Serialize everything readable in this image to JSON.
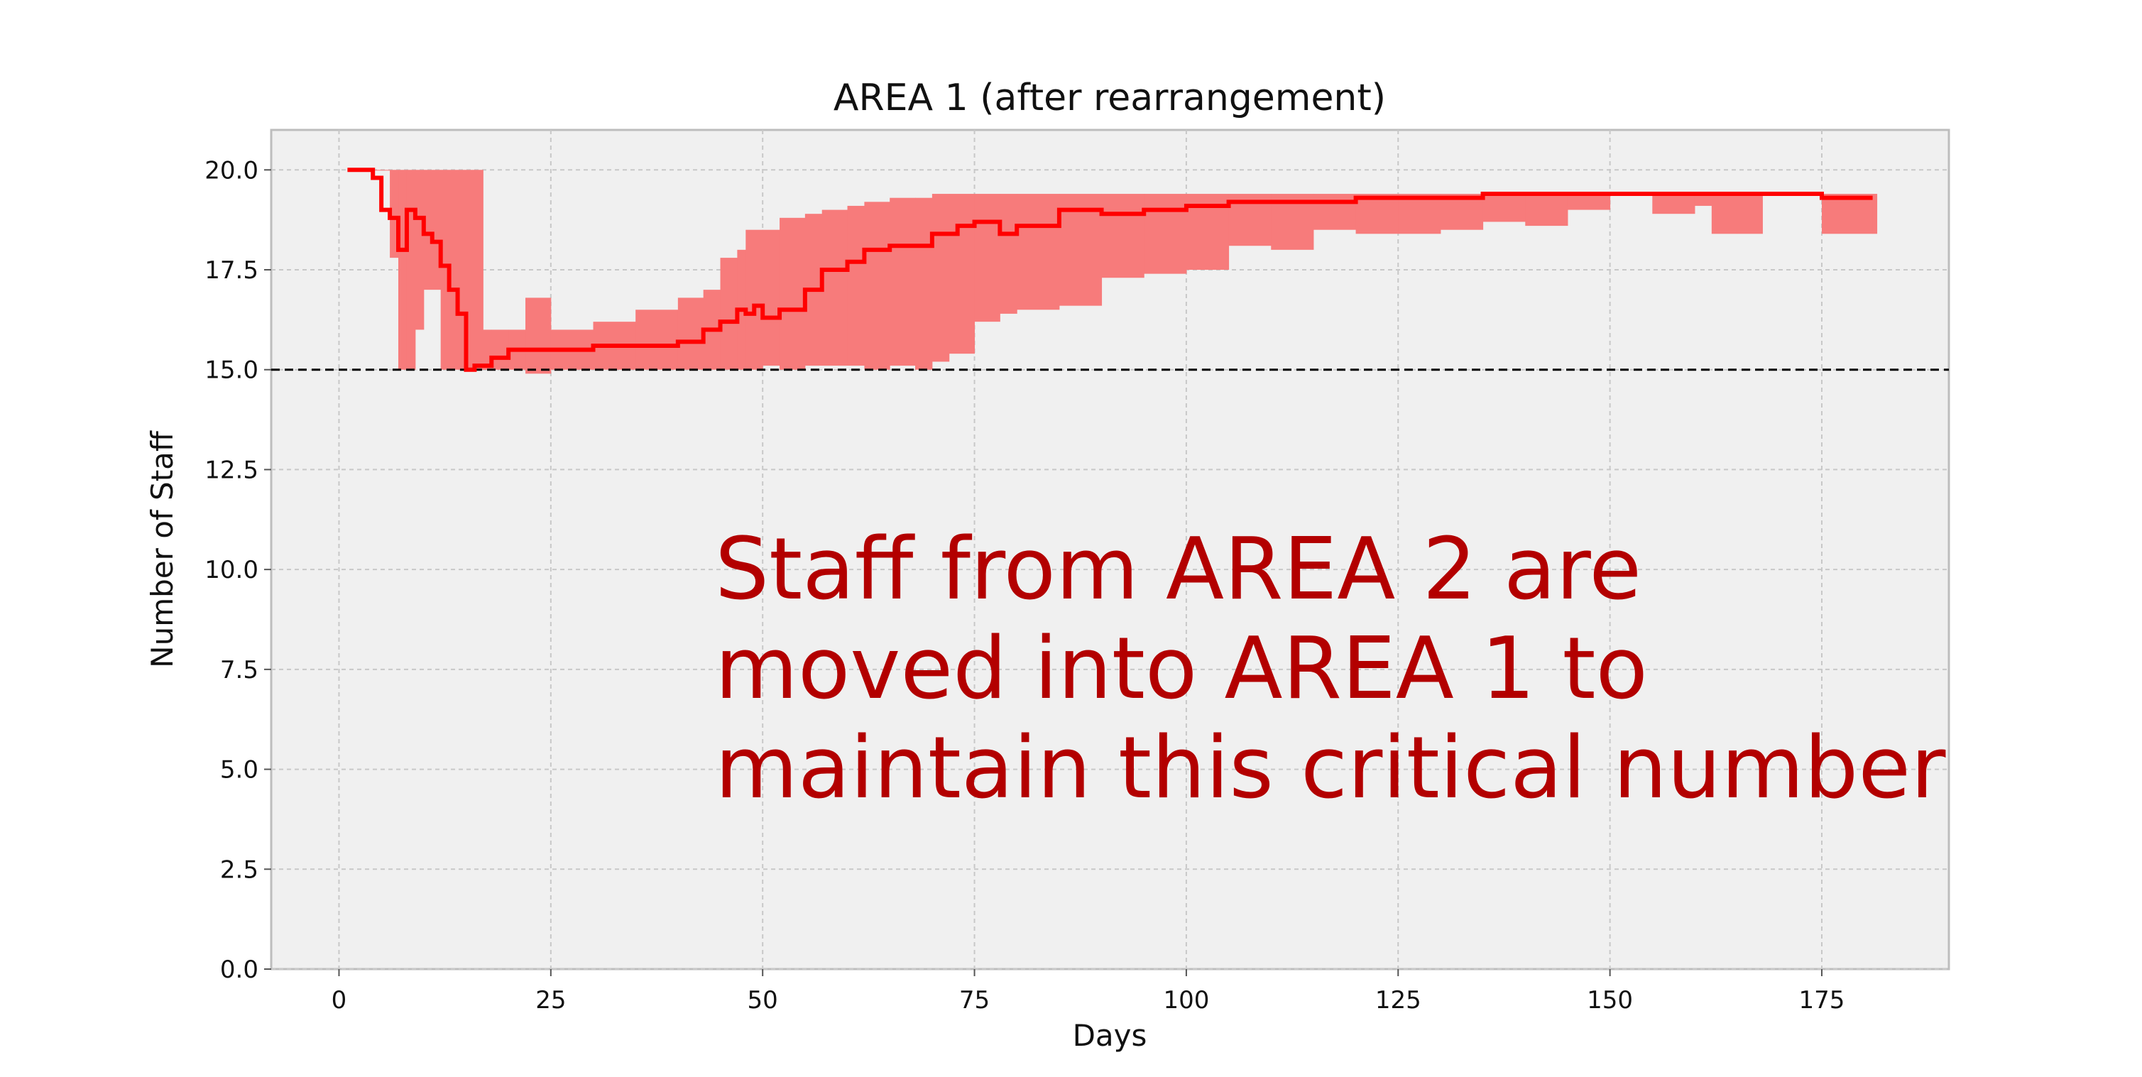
{
  "chart_data": {
    "type": "line",
    "title": "AREA 1 (after rearrangement)",
    "xlabel": "Days",
    "ylabel": "Number of Staff",
    "xlim": [
      -8,
      190
    ],
    "ylim": [
      0,
      21
    ],
    "xticks": [
      0,
      25,
      50,
      75,
      100,
      125,
      150,
      175
    ],
    "xtick_labels": [
      "0",
      "25",
      "50",
      "75",
      "100",
      "125",
      "150",
      "175"
    ],
    "yticks": [
      0,
      2.5,
      5,
      7.5,
      10,
      12.5,
      15,
      17.5,
      20
    ],
    "ytick_labels": [
      "0.0",
      "2.5",
      "5.0",
      "7.5",
      "10.0",
      "12.5",
      "15.0",
      "17.5",
      "20.0"
    ],
    "grid": true,
    "reference_line": {
      "y": 15.0,
      "style": "dashed",
      "color": "#000000"
    },
    "annotation": {
      "lines": [
        "Staff from AREA 2 are",
        "moved into AREA 1 to",
        "maintain this critical number"
      ],
      "color": "#b30000"
    },
    "colors": {
      "line": "#ff0000",
      "band": "#f77b7b",
      "axes_bg": "#f0f0f0"
    },
    "series": [
      {
        "kind": "step-line",
        "x": [
          1,
          4,
          5,
          6,
          7,
          8,
          9,
          10,
          11,
          12,
          13,
          14,
          15,
          16,
          17,
          18,
          20,
          22,
          25,
          30,
          35,
          40,
          43,
          45,
          47,
          48,
          49,
          50,
          52,
          55,
          57,
          60,
          62,
          65,
          70,
          73,
          75,
          78,
          80,
          85,
          90,
          95,
          100,
          105,
          110,
          115,
          120,
          125,
          130,
          135,
          140,
          150,
          160,
          170,
          175,
          181
        ],
        "y": [
          20.0,
          19.8,
          19.0,
          18.8,
          18.0,
          19.0,
          18.8,
          18.4,
          18.2,
          17.6,
          17.0,
          16.4,
          15.0,
          15.1,
          15.1,
          15.3,
          15.5,
          15.5,
          15.5,
          15.6,
          15.6,
          15.7,
          16.0,
          16.2,
          16.5,
          16.4,
          16.6,
          16.3,
          16.5,
          17.0,
          17.5,
          17.7,
          18.0,
          18.1,
          18.4,
          18.6,
          18.7,
          18.4,
          18.6,
          19.0,
          18.9,
          19.0,
          19.1,
          19.2,
          19.2,
          19.2,
          19.3,
          19.3,
          19.3,
          19.4,
          19.4,
          19.4,
          19.4,
          19.4,
          19.3,
          19.3
        ]
      },
      {
        "kind": "band",
        "x": [
          3,
          6,
          7,
          8,
          9,
          10,
          12,
          14,
          16,
          17,
          18,
          20,
          22,
          25,
          30,
          35,
          40,
          43,
          45,
          47,
          48,
          50,
          52,
          55,
          57,
          60,
          62,
          65,
          68,
          70,
          72,
          75,
          78,
          80,
          85,
          90,
          95,
          100,
          105,
          110,
          115,
          120,
          125,
          130,
          135,
          140,
          145,
          150,
          155,
          160,
          162,
          165,
          168,
          170,
          175,
          181
        ],
        "lower": [
          20.0,
          17.8,
          15.0,
          15.0,
          16.0,
          17.0,
          15.0,
          15.0,
          15.0,
          15.0,
          15.0,
          15.0,
          14.9,
          15.0,
          15.0,
          15.0,
          15.0,
          15.0,
          15.0,
          15.0,
          15.0,
          15.1,
          15.0,
          15.1,
          15.1,
          15.1,
          15.0,
          15.1,
          15.0,
          15.2,
          15.4,
          16.2,
          16.4,
          16.5,
          16.6,
          17.3,
          17.4,
          17.5,
          18.1,
          18.0,
          18.5,
          18.4,
          18.4,
          18.5,
          18.7,
          18.6,
          19.0,
          19.4,
          18.9,
          19.1,
          18.4,
          18.4,
          19.4,
          19.4,
          18.4,
          18.4
        ],
        "upper": [
          20.0,
          20.0,
          20.0,
          20.0,
          20.0,
          20.0,
          20.0,
          20.0,
          20.0,
          16.0,
          16.0,
          16.0,
          16.8,
          16.0,
          16.2,
          16.5,
          16.8,
          17.0,
          17.8,
          18.0,
          18.5,
          18.5,
          18.8,
          18.9,
          19.0,
          19.1,
          19.2,
          19.3,
          19.3,
          19.4,
          19.4,
          19.4,
          19.4,
          19.4,
          19.4,
          19.4,
          19.4,
          19.4,
          19.4,
          19.4,
          19.4,
          19.4,
          19.4,
          19.4,
          19.4,
          19.4,
          19.4,
          19.4,
          19.4,
          19.4,
          19.4,
          19.4,
          19.4,
          19.4,
          19.4,
          19.4
        ]
      }
    ]
  }
}
